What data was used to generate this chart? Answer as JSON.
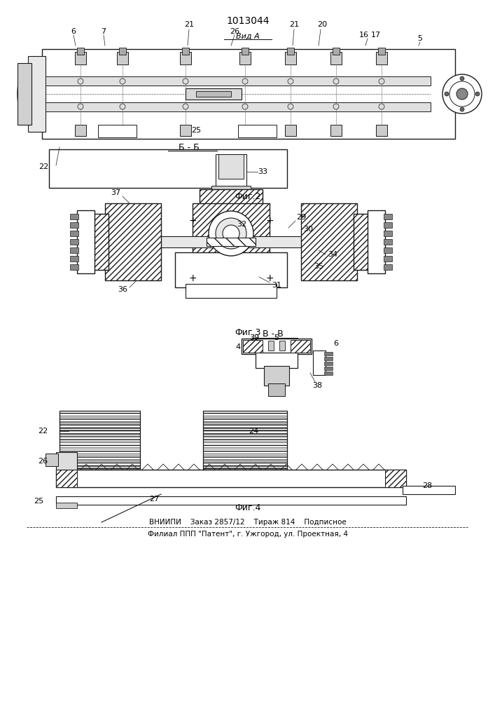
{
  "patent_number": "1013044",
  "bg": "#ffffff",
  "lc": "#1a1a1a",
  "fig_width": 7.07,
  "fig_height": 10.0,
  "footer_line1": "ВНИИПИ    Заказ 2857/12    Тираж 814    Подписное",
  "footer_line2": "Филиал ППП \"Патент\", г. Ужгород, ул. Проектная, 4",
  "view_a_label": "Вид А",
  "fig2_label": "Фиг.2",
  "fig3_label": "Фиг.3",
  "fig4_label": "Фиг.4",
  "section_bb": "Б - Б",
  "section_vv": "В - В",
  "hatch_color": "#333333"
}
